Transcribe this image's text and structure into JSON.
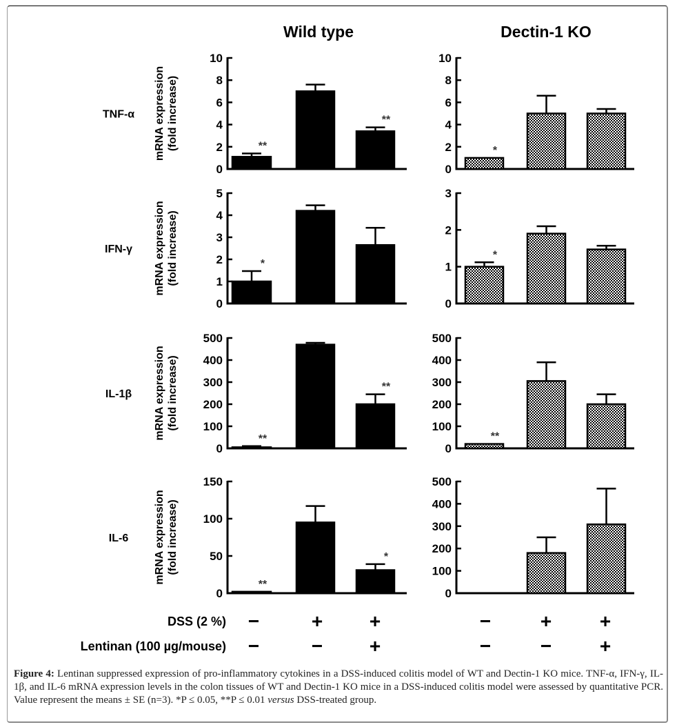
{
  "figure": {
    "caption_label": "Figure 4:",
    "caption_part1": " Lentinan suppressed expression of pro-inflammatory cytokines in a DSS-induced colitis model of WT and Dectin-1 KO mice. TNF-α, IFN-γ, IL-1β, and IL-6 mRNA expression levels in the colon tissues of WT and Dectin-1 KO mice in a DSS-induced colitis model were assessed by quantitative PCR. Value represent the means ± SE (n=3). *P ≤ 0.05, **P ≤ 0.01 ",
    "caption_italic": "versus",
    "caption_part2": " DSS-treated group."
  },
  "columns": [
    "Wild type",
    "Dectin-1 KO"
  ],
  "ylabel_line1": "mRNA expression",
  "ylabel_line2": "(fold increase)",
  "treatments": {
    "rows": [
      {
        "label": "DSS (2 %)",
        "values": [
          "−",
          "+",
          "+",
          "−",
          "+",
          "+"
        ]
      },
      {
        "label": "Lentinan (100 µg/mouse)",
        "values": [
          "−",
          "−",
          "+",
          "−",
          "−",
          "+"
        ]
      }
    ]
  },
  "chart_data": [
    {
      "type": "bar",
      "title": "Wild type",
      "row_label": "TNF-α",
      "ylabel": "mRNA expression (fold increase)",
      "fill": "solid",
      "categories": [
        "DSS− Lentinan−",
        "DSS+ Lentinan−",
        "DSS+ Lentinan+"
      ],
      "values": [
        1.1,
        7.0,
        3.4
      ],
      "errors": [
        0.3,
        0.6,
        0.35
      ],
      "significance": [
        "**",
        "",
        "**"
      ],
      "ylim": [
        0,
        10
      ],
      "yticks": [
        0,
        2,
        4,
        6,
        8,
        10
      ]
    },
    {
      "type": "bar",
      "title": "Dectin-1 KO",
      "row_label": "TNF-α",
      "ylabel": "mRNA expression (fold increase)",
      "fill": "checker",
      "categories": [
        "DSS− Lentinan−",
        "DSS+ Lentinan−",
        "DSS+ Lentinan+"
      ],
      "values": [
        1.0,
        5.0,
        5.0
      ],
      "errors": [
        0,
        1.6,
        0.4
      ],
      "significance": [
        "*",
        "",
        ""
      ],
      "ylim": [
        0,
        10
      ],
      "yticks": [
        0,
        2,
        4,
        6,
        8,
        10
      ]
    },
    {
      "type": "bar",
      "title": "Wild type",
      "row_label": "IFN-γ",
      "ylabel": "mRNA expression (fold increase)",
      "fill": "solid",
      "categories": [
        "DSS− Lentinan−",
        "DSS+ Lentinan−",
        "DSS+ Lentinan+"
      ],
      "values": [
        1.0,
        4.2,
        2.65
      ],
      "errors": [
        0.47,
        0.25,
        0.78
      ],
      "significance": [
        "*",
        "",
        ""
      ],
      "ylim": [
        0,
        5
      ],
      "yticks": [
        0,
        1,
        2,
        3,
        4,
        5
      ]
    },
    {
      "type": "bar",
      "title": "Dectin-1 KO",
      "row_label": "IFN-γ",
      "ylabel": "mRNA expression (fold increase)",
      "fill": "checker",
      "categories": [
        "DSS− Lentinan−",
        "DSS+ Lentinan−",
        "DSS+ Lentinan+"
      ],
      "values": [
        1.0,
        1.9,
        1.47
      ],
      "errors": [
        0.12,
        0.2,
        0.1
      ],
      "significance": [
        "*",
        "",
        ""
      ],
      "ylim": [
        0,
        3
      ],
      "yticks": [
        0,
        1,
        2,
        3
      ]
    },
    {
      "type": "bar",
      "title": "Wild type",
      "row_label": "IL-1β",
      "ylabel": "mRNA expression (fold increase)",
      "fill": "solid",
      "categories": [
        "DSS− Lentinan−",
        "DSS+ Lentinan−",
        "DSS+ Lentinan+"
      ],
      "values": [
        5,
        470,
        200
      ],
      "errors": [
        5,
        8,
        45
      ],
      "significance": [
        "**",
        "",
        "**"
      ],
      "ylim": [
        0,
        500
      ],
      "yticks": [
        0,
        100,
        200,
        300,
        400,
        500
      ]
    },
    {
      "type": "bar",
      "title": "Dectin-1 KO",
      "row_label": "IL-1β",
      "ylabel": "mRNA expression (fold increase)",
      "fill": "checker",
      "categories": [
        "DSS− Lentinan−",
        "DSS+ Lentinan−",
        "DSS+ Lentinan+"
      ],
      "values": [
        20,
        305,
        200
      ],
      "errors": [
        0,
        85,
        45
      ],
      "significance": [
        "**",
        "",
        ""
      ],
      "ylim": [
        0,
        500
      ],
      "yticks": [
        0,
        100,
        200,
        300,
        400,
        500
      ]
    },
    {
      "type": "bar",
      "title": "Wild type",
      "row_label": "IL-6",
      "ylabel": "mRNA expression (fold increase)",
      "fill": "solid",
      "categories": [
        "DSS− Lentinan−",
        "DSS+ Lentinan−",
        "DSS+ Lentinan+"
      ],
      "values": [
        2,
        95,
        31
      ],
      "errors": [
        0,
        22,
        8
      ],
      "significance": [
        "**",
        "",
        "*"
      ],
      "ylim": [
        0,
        150
      ],
      "yticks": [
        0,
        50,
        100,
        150
      ]
    },
    {
      "type": "bar",
      "title": "Dectin-1 KO",
      "row_label": "IL-6",
      "ylabel": "mRNA expression (fold increase)",
      "fill": "checker",
      "categories": [
        "DSS− Lentinan−",
        "DSS+ Lentinan−",
        "DSS+ Lentinan+"
      ],
      "values": [
        0,
        180,
        308
      ],
      "errors": [
        0,
        70,
        160
      ],
      "significance": [
        "",
        "",
        ""
      ],
      "ylim": [
        0,
        500
      ],
      "yticks": [
        0,
        100,
        200,
        300,
        400,
        500
      ]
    }
  ]
}
